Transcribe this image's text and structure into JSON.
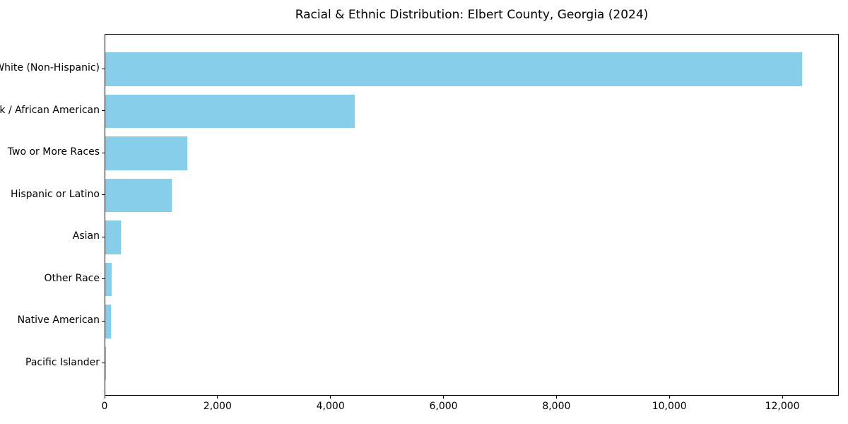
{
  "chart_data": {
    "type": "bar",
    "orientation": "horizontal",
    "title": "Racial & Ethnic Distribution: Elbert County, Georgia (2024)",
    "categories": [
      "White (Non-Hispanic)",
      "Black / African American",
      "Two or More Races",
      "Hispanic or Latino",
      "Asian",
      "Other Race",
      "Native American",
      "Pacific Islander"
    ],
    "values": [
      12360,
      4430,
      1460,
      1175,
      270,
      115,
      105,
      10
    ],
    "xlabel": "",
    "ylabel": "",
    "xlim": [
      0,
      13000
    ],
    "x_ticks": [
      0,
      2000,
      4000,
      6000,
      8000,
      10000,
      12000
    ],
    "x_tick_labels": [
      "0",
      "2,000",
      "4,000",
      "6,000",
      "8,000",
      "10,000",
      "12,000"
    ],
    "bar_color": "#87CEEB",
    "axis_color": "#000000",
    "grid": false,
    "legend_position": "none"
  }
}
